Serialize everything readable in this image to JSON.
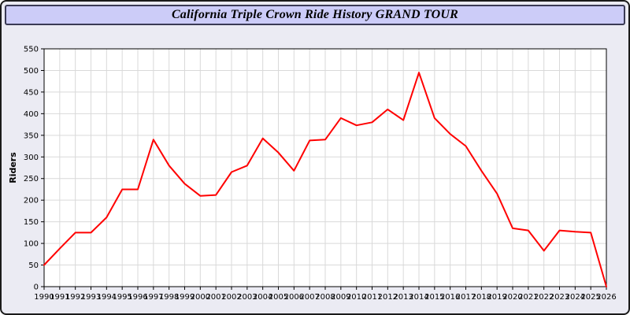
{
  "window": {
    "title": "California Triple Crown Ride History GRAND TOUR"
  },
  "colors": {
    "page_background": "#ebebf3",
    "titlebar_background": "#ccccf8",
    "titlebar_border": "#3a3a55",
    "outer_border": "#1a1a1a",
    "plot_background": "#ffffff",
    "plot_border": "#000000",
    "grid": "#d9d9d9",
    "line": "#ff0000",
    "tick_text": "#000000"
  },
  "chart_data": {
    "type": "line",
    "title": "California Triple Crown Ride History GRAND TOUR",
    "xlabel": "",
    "ylabel": "Riders",
    "ylim": [
      0,
      550
    ],
    "ytick_step": 50,
    "grid": true,
    "legend_position": "none",
    "x": [
      "1990",
      "1991",
      "1992",
      "1993",
      "1994",
      "1995",
      "1996",
      "1997",
      "1998",
      "1999",
      "2000",
      "2001",
      "2002",
      "2003",
      "2004",
      "2005",
      "2006",
      "2007",
      "2008",
      "2009",
      "2010",
      "2011",
      "2012",
      "2013",
      "2014",
      "2015",
      "2016",
      "2017",
      "2018",
      "2019",
      "2020",
      "2021",
      "2022",
      "2023",
      "2024",
      "2025",
      "2026"
    ],
    "values": [
      50,
      88,
      125,
      125,
      160,
      225,
      225,
      340,
      280,
      238,
      210,
      212,
      265,
      280,
      343,
      310,
      268,
      338,
      340,
      390,
      373,
      380,
      410,
      385,
      495,
      390,
      353,
      325,
      268,
      215,
      135,
      130,
      83,
      130,
      127,
      125,
      0
    ]
  }
}
